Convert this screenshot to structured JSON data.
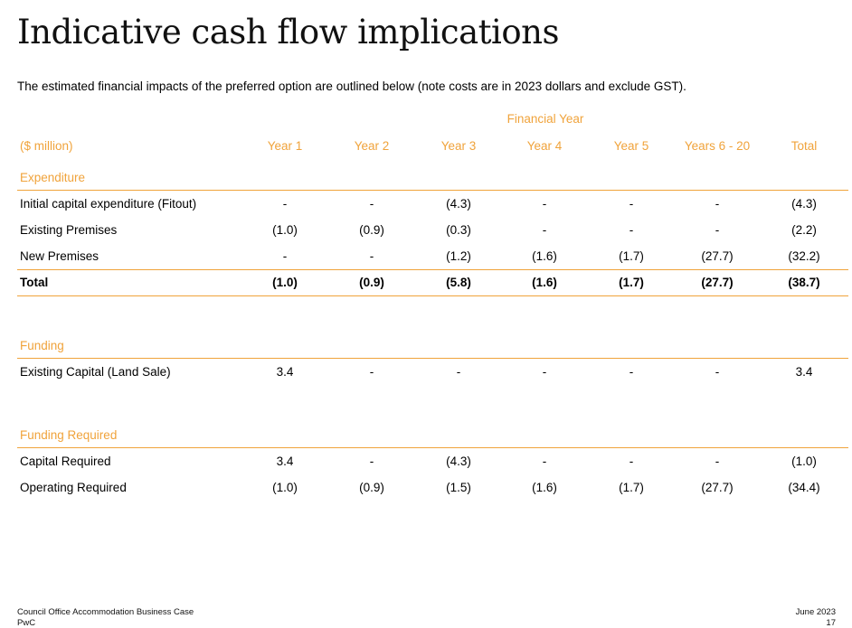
{
  "page": {
    "title": "Indicative cash flow implications",
    "intro": "The estimated financial impacts of the preferred option are outlined below (note costs are in 2023 dollars and exclude GST)."
  },
  "table": {
    "group_header": "Financial Year",
    "unit_label": "($ million)",
    "columns": [
      "Year 1",
      "Year 2",
      "Year 3",
      "Year 4",
      "Year 5",
      "Years 6 - 20",
      "Total"
    ],
    "sections": [
      {
        "heading": "Expenditure",
        "rows": [
          {
            "label": "Initial capital expenditure (Fitout)",
            "values": [
              "-",
              "-",
              "(4.3)",
              "-",
              "-",
              "-",
              "(4.3)"
            ]
          },
          {
            "label": "Existing Premises",
            "values": [
              "(1.0)",
              "(0.9)",
              "(0.3)",
              "-",
              "-",
              "-",
              "(2.2)"
            ]
          },
          {
            "label": "New Premises",
            "values": [
              "-",
              "-",
              "(1.2)",
              "(1.6)",
              "(1.7)",
              "(27.7)",
              "(32.2)"
            ]
          }
        ],
        "total": {
          "label": "Total",
          "values": [
            "(1.0)",
            "(0.9)",
            "(5.8)",
            "(1.6)",
            "(1.7)",
            "(27.7)",
            "(38.7)"
          ]
        }
      },
      {
        "heading": "Funding",
        "rows": [
          {
            "label": "Existing Capital (Land Sale)",
            "values": [
              "3.4",
              "-",
              "-",
              "-",
              "-",
              "-",
              "3.4"
            ]
          }
        ]
      },
      {
        "heading": "Funding Required",
        "rows": [
          {
            "label": "Capital Required",
            "values": [
              "3.4",
              "-",
              "(4.3)",
              "-",
              "-",
              "-",
              "(1.0)"
            ]
          },
          {
            "label": "Operating Required",
            "values": [
              "(1.0)",
              "(0.9)",
              "(1.5)",
              "(1.6)",
              "(1.7)",
              "(27.7)",
              "(34.4)"
            ]
          }
        ]
      }
    ]
  },
  "footer": {
    "left": "Council Office Accommodation Business Case",
    "left_sub": "PwC",
    "right": "June 2023",
    "right_sub": "17"
  },
  "colors": {
    "accent": "#f0a33b",
    "text": "#000000",
    "background": "#ffffff"
  }
}
